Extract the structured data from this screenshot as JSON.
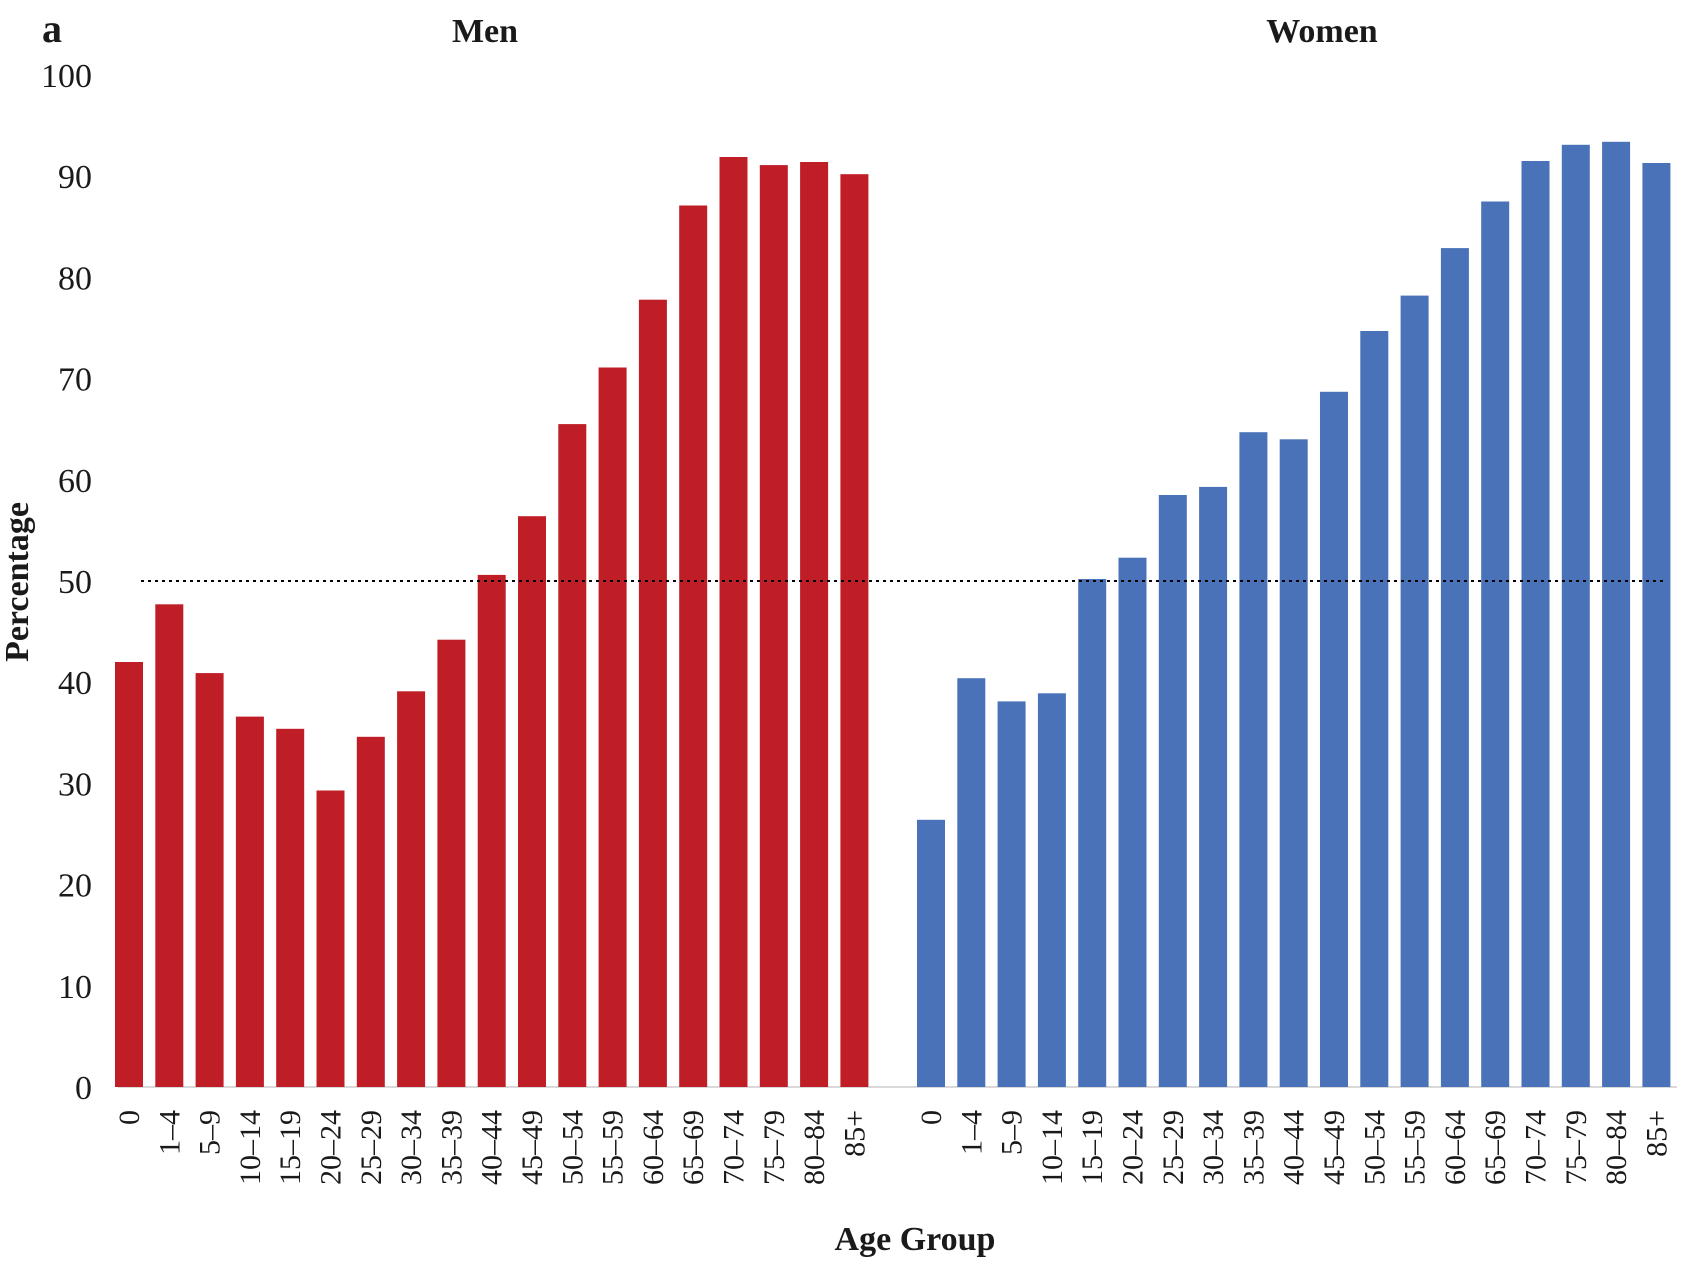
{
  "chart_data": {
    "type": "bar",
    "panel_label": "a",
    "ylabel": "Percentage",
    "xlabel": "Age Group",
    "ylim": [
      0,
      100
    ],
    "yticks": [
      0,
      10,
      20,
      30,
      40,
      50,
      60,
      70,
      80,
      90,
      100
    ],
    "reference_line": {
      "y": 50,
      "style": "dotted"
    },
    "grid": false,
    "categories": [
      "0",
      "1–4",
      "5–9",
      "10–14",
      "15–19",
      "20–24",
      "25–29",
      "30–34",
      "35–39",
      "40–44",
      "45–49",
      "50–54",
      "55–59",
      "60–64",
      "65–69",
      "70–74",
      "75–79",
      "80–84",
      "85+"
    ],
    "series": [
      {
        "name": "Men",
        "color": "#c01e26",
        "values": [
          42.0,
          47.7,
          40.9,
          36.6,
          35.4,
          29.3,
          34.6,
          39.1,
          44.2,
          50.6,
          56.4,
          65.5,
          71.1,
          77.8,
          87.1,
          91.9,
          91.1,
          91.4,
          90.2
        ]
      },
      {
        "name": "Women",
        "color": "#4a72b8",
        "values": [
          26.4,
          40.4,
          38.1,
          38.9,
          50.2,
          52.3,
          58.5,
          59.3,
          64.7,
          64.0,
          68.7,
          74.7,
          78.2,
          82.9,
          87.5,
          91.5,
          93.1,
          93.4,
          91.3
        ]
      }
    ]
  }
}
